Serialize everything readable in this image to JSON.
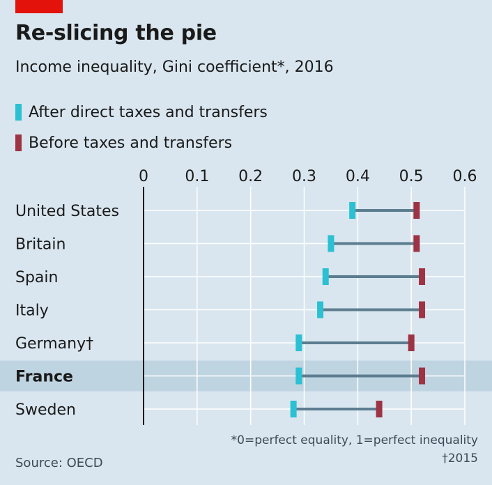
{
  "title": "Re-slicing the pie",
  "subtitle": "Income inequality, Gini coefficient*, 2016",
  "legend": [
    {
      "label": "After direct taxes and transfers",
      "color": "#2bc0d2"
    },
    {
      "label": "Before taxes and transfers",
      "color": "#9e3344"
    }
  ],
  "footnote": "*0=perfect equality, 1=perfect inequality",
  "footnote_2": "†2015",
  "source": "Source: OECD",
  "colors": {
    "background": "#d9e6ef",
    "highlight_band": "#bfd4e1",
    "connector": "#5c7d8f",
    "grid": "#ffffff",
    "accent": "#e3120b"
  },
  "chart_data": {
    "type": "dot-range",
    "xlim": [
      0,
      0.6
    ],
    "ticks": [
      "0",
      "0.1",
      "0.2",
      "0.3",
      "0.4",
      "0.5",
      "0.6"
    ],
    "tick_values": [
      0,
      0.1,
      0.2,
      0.3,
      0.4,
      0.5,
      0.6
    ],
    "grid": true,
    "highlight": "France",
    "categories": [
      "United States",
      "Britain",
      "Spain",
      "Italy",
      "Germany†",
      "France",
      "Sweden"
    ],
    "series": [
      {
        "name": "After direct taxes and transfers",
        "values": [
          0.39,
          0.35,
          0.34,
          0.33,
          0.29,
          0.29,
          0.28
        ]
      },
      {
        "name": "Before taxes and transfers",
        "values": [
          0.51,
          0.51,
          0.52,
          0.52,
          0.5,
          0.52,
          0.44
        ]
      }
    ]
  }
}
